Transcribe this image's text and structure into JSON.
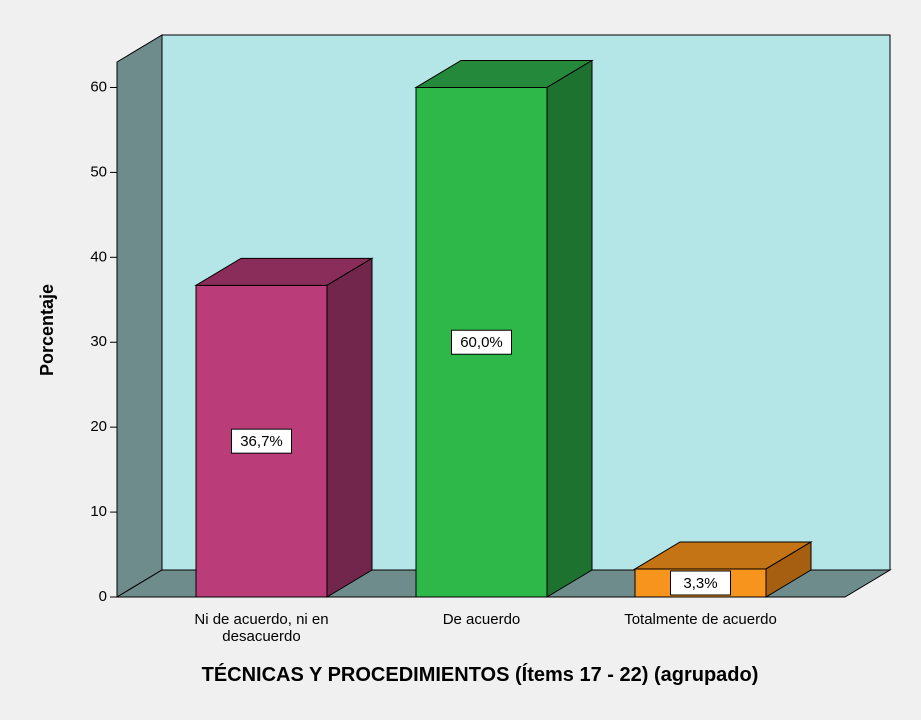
{
  "chart_data": {
    "type": "bar3d",
    "x_label": "TÉCNICAS Y PROCEDIMIENTOS (Ítems 17 - 22) (agrupado)",
    "y_label": "Porcentaje",
    "categories": [
      "Ni de acuerdo, ni en desacuerdo",
      "De acuerdo",
      "Totalmente de acuerdo"
    ],
    "values": [
      36.7,
      60.0,
      3.3
    ],
    "value_labels": [
      "36,7%",
      "60,0%",
      "3,3%"
    ],
    "colors": [
      [
        "#ba3c79",
        "#8b2d5b",
        "#73264b"
      ],
      [
        "#2eb84a",
        "#25893b",
        "#1e7230"
      ],
      [
        "#f7941d",
        "#c47414",
        "#a65f10"
      ]
    ],
    "ylim": [
      0,
      63
    ],
    "yticks": [
      0,
      10,
      20,
      30,
      40,
      50,
      60
    ]
  }
}
